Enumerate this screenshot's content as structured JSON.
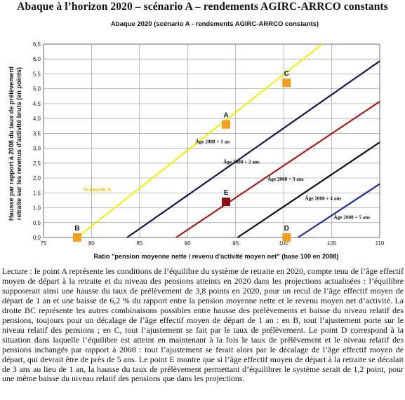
{
  "page_title": "Abaque à l’horizon 2020 – scénario A – rendements AGIRC-ARRCO constants",
  "chart_data": {
    "type": "line",
    "title": "Abaque 2020 (scénario A - rendements AGIRC-ARRCO constants)",
    "xlabel": "Ratio \"pension moyenne nette / revenu d'activité moyen net\" (base 100 en 2008)",
    "ylabel_lines": [
      "Hausse par rapport à 2008 du taux de prélèvement",
      "retraite sur les revenus d'activité bruts (en points)"
    ],
    "xlim": [
      75,
      110
    ],
    "ylim": [
      0,
      6.5
    ],
    "xticks": [
      "75",
      "80",
      "85",
      "90",
      "95",
      "100",
      "105",
      "110"
    ],
    "yticks": [
      "0,0",
      "0,5",
      "1,0",
      "1,5",
      "2,0",
      "2,5",
      "3,0",
      "3,5",
      "4,0",
      "4,5",
      "5,0",
      "5,5",
      "6,0",
      "6,5"
    ],
    "grid": true,
    "series": [
      {
        "name": "Scénario A",
        "color": "#f2ec1e",
        "x": [
          78.5,
          104
        ],
        "y": [
          0,
          6.5
        ]
      },
      {
        "name": "Âge 2008 + 2 ans",
        "color": "#15174a",
        "x": [
          83.7,
          110
        ],
        "y": [
          0,
          5.93
        ]
      },
      {
        "name": "Âge 2008 + 3 ans",
        "color": "#a01c18",
        "x": [
          88.8,
          110
        ],
        "y": [
          0,
          4.57
        ]
      },
      {
        "name": "Âge 2008 + 4 ans",
        "color": "#0b0b0b",
        "x": [
          95.2,
          110
        ],
        "y": [
          0,
          3.2
        ]
      },
      {
        "name": "Âge 2008 + 5 ans",
        "color": "#1f2d8a",
        "x": [
          101.5,
          110
        ],
        "y": [
          0,
          1.8
        ]
      }
    ],
    "line_labels": [
      {
        "text": "Âge 2008  +  1 an",
        "x": 92.6,
        "y": 3.17
      },
      {
        "text": "Âge 2008  +  2 ans",
        "x": 95.6,
        "y": 2.48
      },
      {
        "text": "Âge 2008  +  3 ans",
        "x": 100.2,
        "y": 1.91
      },
      {
        "text": "Âge 2008  +  4 ans",
        "x": 104.1,
        "y": 1.26
      },
      {
        "text": "Âge 2008  +  5 ans",
        "x": 107.1,
        "y": 0.62
      },
      {
        "text": "Scénario A",
        "x": 80.6,
        "y": 1.55
      }
    ],
    "points": [
      {
        "label": "A",
        "x": 94,
        "y": 3.8,
        "color": "#f0a020"
      },
      {
        "label": "B",
        "x": 78.5,
        "y": 0,
        "color": "#f0a020"
      },
      {
        "label": "C",
        "x": 100.3,
        "y": 5.2,
        "color": "#f0a020"
      },
      {
        "label": "D",
        "x": 100.3,
        "y": 0,
        "color": "#f0a020"
      },
      {
        "label": "E",
        "x": 94,
        "y": 1.2,
        "color": "#8c1010"
      }
    ]
  },
  "caption": "Lecture : le point A représente les conditions de l’équilibre du système de retraite en 2020, compte tenu de l’âge effectif moyen de départ à la retraite et du niveau des pensions atteints en 2020 dans les projections actualisées : l’équilibre supposerait ainsi une hausse du taux de prélèvement de 3,8 points en 2020, pour un recul de l’âge effectif moyen de départ de 1 an et une baisse de 6,2 % du rapport entre la pension moyenne nette et le revenu moyen net d’activité. La droite BC représente les autres combinaisons possibles entre hausse des prélèvements et baisse du niveau relatif des pensions, toujours pour un décalage de l’âge effectif moyen de départ de 1 an : en B, tout l’ajustement porte sur le niveau relatif des pensions ; en C, tout l’ajustement se fait par le taux de prélèvement. Le point D correspond à la situation dans laquelle l’équilibre est atteint en maintenant à la fois le taux de prélèvement et le niveau relatif des pensions inchangés par rapport à 2008 : tout l’ajustement se ferait alors par le décalage de l’âge effectif moyen de départ, qui devrait être de près de 5 ans. Le point E montre que si l’âge effectif moyen de départ à la retraite se décalait de 3 ans au lieu de 1 an, la hausse du taux de prélèvement permettant d’équilibrer le système serait de 1,2 point, pour une même baisse du niveau relatif des pensions que dans les projections."
}
